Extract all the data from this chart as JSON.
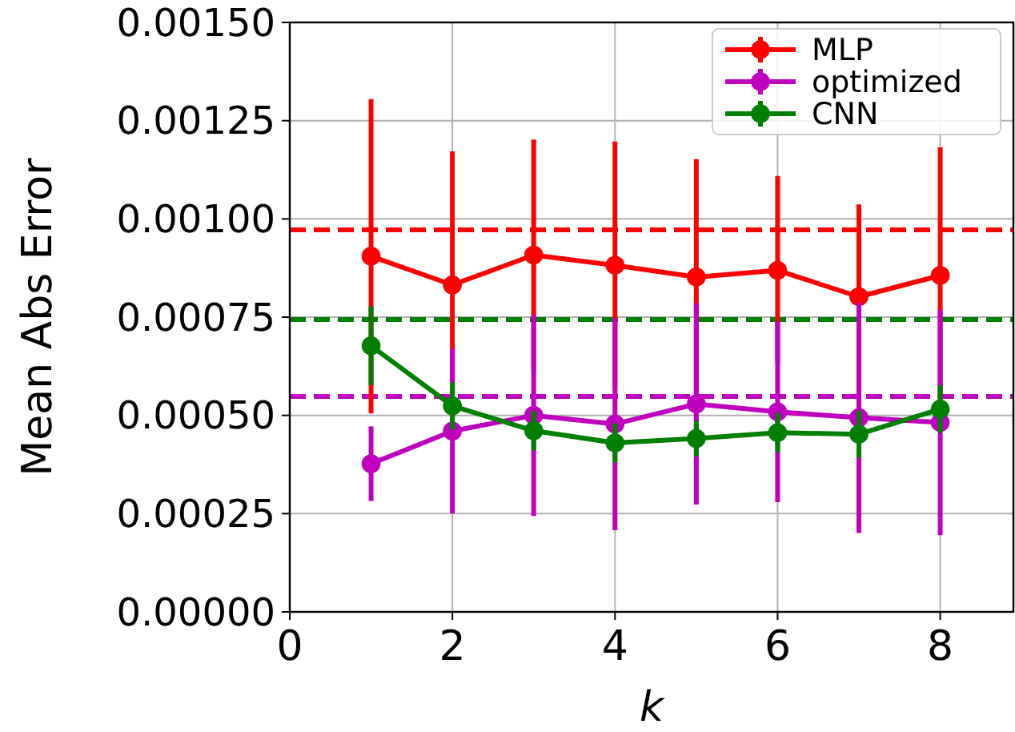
{
  "chart_data": {
    "type": "line",
    "xlabel": "k",
    "ylabel": "Mean Abs Error",
    "x": [
      1,
      2,
      3,
      4,
      5,
      6,
      7,
      8
    ],
    "series": [
      {
        "name": "MLP",
        "color": "#ff0000",
        "values": [
          0.000905,
          0.000832,
          0.000908,
          0.000882,
          0.000852,
          0.000869,
          0.000802,
          0.000856
        ],
        "errors": [
          0.0004,
          0.00034,
          0.000294,
          0.000315,
          0.0003,
          0.00024,
          0.000235,
          0.000326
        ]
      },
      {
        "name": "optimized",
        "color": "#bf00bf",
        "values": [
          0.000377,
          0.00046,
          0.0005,
          0.000478,
          0.000529,
          0.000509,
          0.000494,
          0.000482
        ],
        "errors": [
          9.5e-05,
          0.00021,
          0.000256,
          0.00027,
          0.000256,
          0.00023,
          0.000293,
          0.000287
        ]
      },
      {
        "name": "CNN",
        "color": "#008000",
        "values": [
          0.000677,
          0.000524,
          0.000461,
          0.00043,
          0.000441,
          0.000456,
          0.000452,
          0.000516
        ],
        "errors": [
          0.0001,
          6e-05,
          5e-05,
          5e-05,
          4.5e-05,
          5e-05,
          6e-05,
          6e-05
        ]
      }
    ],
    "ref_lines": [
      {
        "axis": "y",
        "value": 0.000972,
        "color": "#ff0000",
        "line_style": "dashed"
      },
      {
        "axis": "y",
        "value": 0.000744,
        "color": "#008000",
        "line_style": "dashed"
      },
      {
        "axis": "y",
        "value": 0.000548,
        "color": "#bf00bf",
        "line_style": "dashed"
      }
    ],
    "xlim": [
      0,
      8.9
    ],
    "xticks": [
      0,
      2,
      4,
      6,
      8
    ],
    "ylim": [
      0,
      0.0015
    ],
    "yticks": [
      {
        "value": 0,
        "label": "0.00000"
      },
      {
        "value": 0.00025,
        "label": "0.00025"
      },
      {
        "value": 0.0005,
        "label": "0.00050"
      },
      {
        "value": 0.00075,
        "label": "0.00075"
      },
      {
        "value": 0.001,
        "label": "0.00100"
      },
      {
        "value": 0.00125,
        "label": "0.00125"
      },
      {
        "value": 0.0015,
        "label": "0.00150"
      }
    ],
    "grid": true,
    "legend": "top right",
    "marker": "circle",
    "line_style": "solid"
  }
}
